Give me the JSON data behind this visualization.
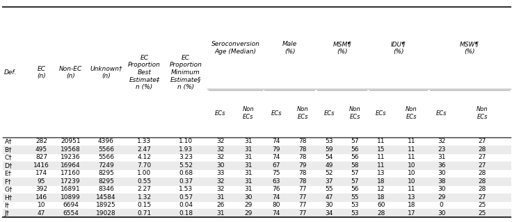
{
  "rows": [
    [
      "A†",
      "282",
      "20951",
      "4396",
      "1.33",
      "1.10",
      "32",
      "31",
      "74",
      "78",
      "53",
      "57",
      "11",
      "11",
      "32",
      "27"
    ],
    [
      "B†",
      "495",
      "19568",
      "5566",
      "2.47",
      "1.93",
      "32",
      "31",
      "79",
      "78",
      "59",
      "56",
      "15",
      "11",
      "23",
      "28"
    ],
    [
      "C†",
      "827",
      "19236",
      "5566",
      "4.12",
      "3.23",
      "32",
      "31",
      "74",
      "78",
      "54",
      "56",
      "11",
      "11",
      "31",
      "27"
    ],
    [
      "D†",
      "1416",
      "16964",
      "7249",
      "7.70",
      "5.52",
      "30",
      "31",
      "67",
      "79",
      "49",
      "58",
      "11",
      "10",
      "36",
      "27"
    ],
    [
      "E†",
      "174",
      "17160",
      "8295",
      "1.00",
      "0.68",
      "33",
      "31",
      "75",
      "78",
      "52",
      "57",
      "13",
      "10",
      "30",
      "28"
    ],
    [
      "F†",
      "95",
      "17239",
      "8295",
      "0.55",
      "0.37",
      "32",
      "31",
      "63",
      "78",
      "37",
      "57",
      "18",
      "10",
      "38",
      "28"
    ],
    [
      "G†",
      "392",
      "16891",
      "8346",
      "2.27",
      "1.53",
      "32",
      "31",
      "76",
      "77",
      "55",
      "56",
      "12",
      "11",
      "30",
      "28"
    ],
    [
      "H†",
      "146",
      "10899",
      "14584",
      "1.32",
      "0.57",
      "31",
      "30",
      "74",
      "77",
      "47",
      "55",
      "18",
      "13",
      "29",
      "27"
    ],
    [
      "I†",
      "10",
      "6694",
      "18925",
      "0.15",
      "0.04",
      "26",
      "29",
      "80",
      "77",
      "30",
      "53",
      "60",
      "18",
      "0",
      "25"
    ],
    [
      "J†",
      "47",
      "6554",
      "19028",
      "0.71",
      "0.18",
      "31",
      "29",
      "74",
      "77",
      "34",
      "53",
      "28",
      "17",
      "30",
      "25"
    ]
  ],
  "col1_headers": [
    "Def.",
    "EC\n(n)",
    "Non-EC\n(n)",
    "Unknown†\n(n)",
    "EC\nProportion\nBest\nEstimate‡\nn (%)",
    "EC\nProportion\nMinimum\nEstimate§\nn (%)"
  ],
  "group_labels": [
    "Seroconversion\nAge (Median)",
    "Male\n(%)",
    "MSM¶\n(%)",
    "IDU¶\n(%)",
    "MSW¶\n(%)"
  ],
  "sub_labels": [
    "ECs",
    "Non\nECs"
  ],
  "font_size": 6.5,
  "shade_color": "#ebebeb",
  "line_color_heavy": "#333333",
  "line_color_light": "#aaaaaa"
}
